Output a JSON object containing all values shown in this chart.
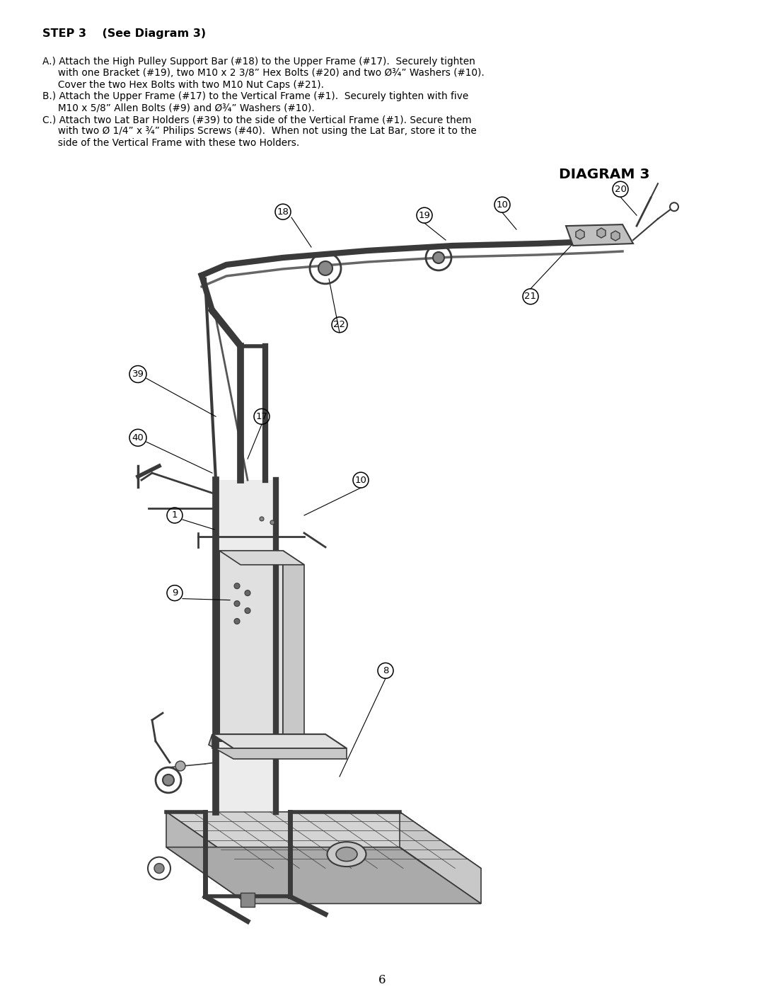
{
  "page_number": "6",
  "title": "STEP 3    (See Diagram 3)",
  "diagram_title": "DIAGRAM 3",
  "background_color": "#ffffff",
  "text_color": "#000000",
  "title_fontsize": 11.5,
  "body_fontsize": 9.8,
  "instruct_lines": [
    "A.) Attach the High Pulley Support Bar (#18) to the Upper Frame (#17).  Securely tighten",
    "     with one Bracket (#19), two M10 x 2 3/8” Hex Bolts (#20) and two Ø¾” Washers (#10).",
    "     Cover the two Hex Bolts with two M10 Nut Caps (#21).",
    "B.) Attach the Upper Frame (#17) to the Vertical Frame (#1).  Securely tighten with five",
    "     M10 x 5/8” Allen Bolts (#9) and Ø¾” Washers (#10).",
    "C.) Attach two Lat Bar Holders (#39) to the side of the Vertical Frame (#1). Secure them",
    "     with two Ø 1/4” x ¾” Philips Screws (#40).  When not using the Lat Bar, store it to the",
    "     side of the Vertical Frame with these two Holders."
  ]
}
